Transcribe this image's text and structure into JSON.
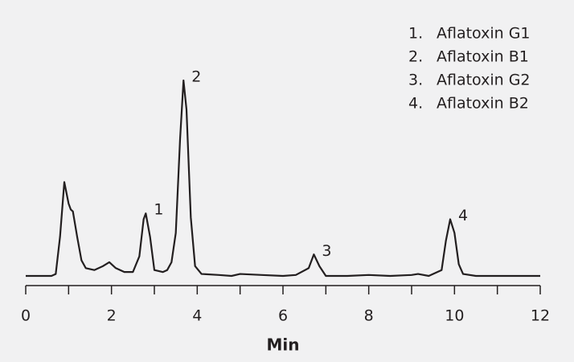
{
  "chart_data": {
    "type": "line",
    "xlabel": "Min",
    "xlim": [
      0,
      12
    ],
    "xticks": [
      0,
      2,
      4,
      6,
      8,
      10,
      12
    ],
    "xminor_ticks": [
      1,
      3,
      5,
      7,
      9,
      11
    ],
    "series": [
      {
        "color": "#231f20",
        "x": [
          0,
          0.6,
          0.7,
          0.8,
          0.9,
          1.0,
          1.05,
          1.1,
          1.2,
          1.3,
          1.4,
          1.6,
          1.8,
          1.95,
          2.1,
          2.3,
          2.5,
          2.65,
          2.75,
          2.8,
          2.9,
          3.0,
          3.2,
          3.3,
          3.4,
          3.5,
          3.6,
          3.68,
          3.75,
          3.85,
          3.95,
          4.1,
          4.5,
          4.8,
          5.0,
          5.5,
          6.0,
          6.3,
          6.6,
          6.72,
          6.85,
          7.0,
          7.5,
          8.0,
          8.5,
          9.0,
          9.15,
          9.4,
          9.7,
          9.8,
          9.9,
          10.0,
          10.1,
          10.2,
          10.5,
          11,
          11.5,
          12
        ],
        "values": [
          0,
          0,
          1,
          20,
          48,
          37,
          34,
          33,
          20,
          8,
          4,
          3,
          5,
          7,
          4,
          2,
          2,
          10,
          29,
          32,
          20,
          3,
          2,
          3,
          7,
          22,
          70,
          100,
          85,
          30,
          5,
          1,
          0.5,
          0,
          1,
          0.5,
          0,
          0.5,
          4,
          11,
          5,
          0,
          0,
          0.5,
          0,
          0.5,
          1,
          0,
          3,
          18,
          29,
          22,
          6,
          1,
          0,
          0,
          0,
          0
        ]
      }
    ],
    "annotations": [
      {
        "text": "1",
        "x": 2.8,
        "y": 32
      },
      {
        "text": "2",
        "x": 3.68,
        "y": 100
      },
      {
        "text": "3",
        "x": 6.72,
        "y": 11
      },
      {
        "text": "4",
        "x": 9.9,
        "y": 29
      }
    ],
    "legend": [
      {
        "number": "1.",
        "name": "Aflatoxin G1"
      },
      {
        "number": "2.",
        "name": "Aflatoxin B1"
      },
      {
        "number": "3.",
        "name": "Aflatoxin G2"
      },
      {
        "number": "4.",
        "name": "Aflatoxin B2"
      }
    ]
  }
}
